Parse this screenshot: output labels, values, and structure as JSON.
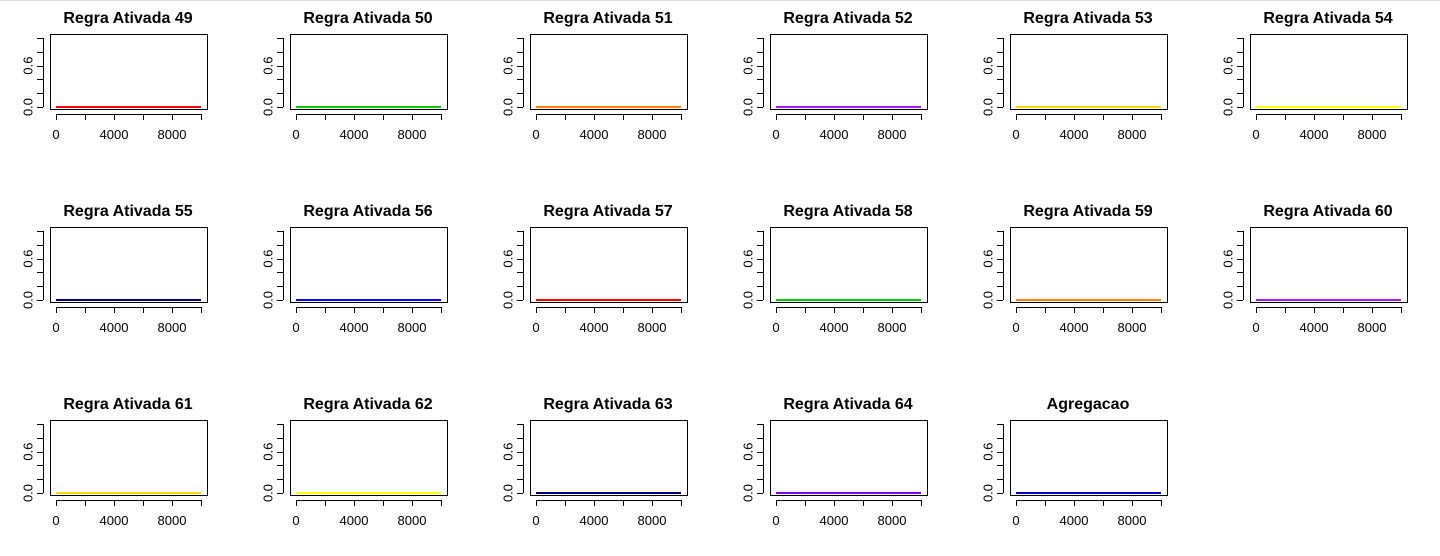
{
  "chart_data": {
    "type": "line",
    "layout": {
      "rows": 3,
      "cols": 6
    },
    "xlim": [
      0,
      10000
    ],
    "ylim": [
      0,
      1
    ],
    "x_ticks": [
      0,
      2000,
      4000,
      6000,
      8000,
      10000
    ],
    "x_tick_labels": [
      "0",
      "4000",
      "8000"
    ],
    "y_ticks": [
      0,
      0.2,
      0.4,
      0.6,
      0.8,
      1.0
    ],
    "y_tick_labels": [
      "0.0",
      "0.6"
    ],
    "panels": [
      {
        "title": "Regra Ativada 49",
        "color": "#ff0000",
        "x": [
          0,
          10000
        ],
        "y": [
          0,
          0
        ]
      },
      {
        "title": "Regra Ativada 50",
        "color": "#00cc00",
        "x": [
          0,
          10000
        ],
        "y": [
          0,
          0
        ]
      },
      {
        "title": "Regra Ativada 51",
        "color": "#ff8000",
        "x": [
          0,
          10000
        ],
        "y": [
          0,
          0
        ]
      },
      {
        "title": "Regra Ativada 52",
        "color": "#a020f0",
        "x": [
          0,
          10000
        ],
        "y": [
          0,
          0
        ]
      },
      {
        "title": "Regra Ativada 53",
        "color": "#ffd700",
        "x": [
          0,
          10000
        ],
        "y": [
          0,
          0
        ]
      },
      {
        "title": "Regra Ativada 54",
        "color": "#ffff00",
        "x": [
          0,
          10000
        ],
        "y": [
          0,
          0
        ]
      },
      {
        "title": "Regra Ativada 55",
        "color": "#000080",
        "x": [
          0,
          10000
        ],
        "y": [
          0,
          0
        ]
      },
      {
        "title": "Regra Ativada 56",
        "color": "#0000ff",
        "x": [
          0,
          10000
        ],
        "y": [
          0,
          0
        ]
      },
      {
        "title": "Regra Ativada 57",
        "color": "#ff0000",
        "x": [
          0,
          10000
        ],
        "y": [
          0,
          0
        ]
      },
      {
        "title": "Regra Ativada 58",
        "color": "#00cc00",
        "x": [
          0,
          10000
        ],
        "y": [
          0,
          0
        ]
      },
      {
        "title": "Regra Ativada 59",
        "color": "#ff8000",
        "x": [
          0,
          10000
        ],
        "y": [
          0,
          0
        ]
      },
      {
        "title": "Regra Ativada 60",
        "color": "#a020f0",
        "x": [
          0,
          10000
        ],
        "y": [
          0,
          0
        ]
      },
      {
        "title": "Regra Ativada 61",
        "color": "#ffd700",
        "x": [
          0,
          10000
        ],
        "y": [
          0,
          0
        ]
      },
      {
        "title": "Regra Ativada 62",
        "color": "#ffff00",
        "x": [
          0,
          10000
        ],
        "y": [
          0,
          0
        ]
      },
      {
        "title": "Regra Ativada 63",
        "color": "#000080",
        "x": [
          0,
          10000
        ],
        "y": [
          0,
          0
        ]
      },
      {
        "title": "Regra Ativada 64",
        "color": "#8000ff",
        "x": [
          0,
          10000
        ],
        "y": [
          0,
          0
        ]
      },
      {
        "title": "Agregacao",
        "color": "#0000cd",
        "x": [
          0,
          10000
        ],
        "y": [
          0,
          0
        ]
      }
    ]
  }
}
